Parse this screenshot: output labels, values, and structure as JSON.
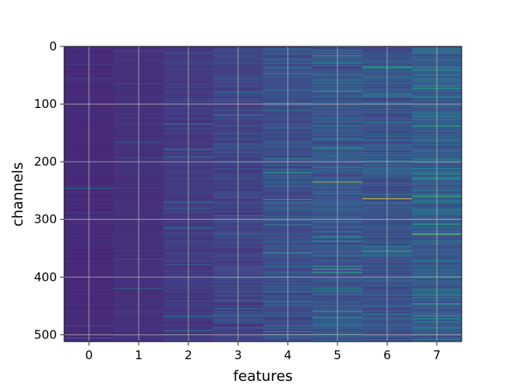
{
  "chart_data": {
    "type": "heatmap",
    "title": "",
    "xlabel": "features",
    "ylabel": "channels",
    "x_ticks": [
      0,
      1,
      2,
      3,
      4,
      5,
      6,
      7
    ],
    "y_ticks": [
      0,
      100,
      200,
      300,
      400,
      500
    ],
    "xlim": [
      -0.5,
      7.5
    ],
    "ylim": [
      512,
      0
    ],
    "n_rows": 512,
    "n_cols": 8,
    "grid": true,
    "colormap": "viridis",
    "column_base_intensity": [
      0.12,
      0.14,
      0.17,
      0.2,
      0.24,
      0.27,
      0.26,
      0.29
    ],
    "column_noise": [
      0.03,
      0.04,
      0.07,
      0.11,
      0.14,
      0.17,
      0.17,
      0.19
    ],
    "highlights": [
      {
        "feature": 5,
        "channel": 235,
        "value": 0.88
      },
      {
        "feature": 6,
        "channel": 264,
        "value": 1.0
      },
      {
        "feature": 7,
        "channel": 325,
        "value": 0.85
      },
      {
        "feature": 7,
        "channel": 260,
        "value": 0.7
      },
      {
        "feature": 5,
        "channel": 386,
        "value": 0.72
      },
      {
        "feature": 4,
        "channel": 218,
        "value": 0.62
      },
      {
        "feature": 4,
        "channel": 265,
        "value": 0.6
      },
      {
        "feature": 5,
        "channel": 16,
        "value": 0.62
      },
      {
        "feature": 7,
        "channel": 138,
        "value": 0.65
      },
      {
        "feature": 7,
        "channel": 68,
        "value": 0.6
      }
    ]
  }
}
